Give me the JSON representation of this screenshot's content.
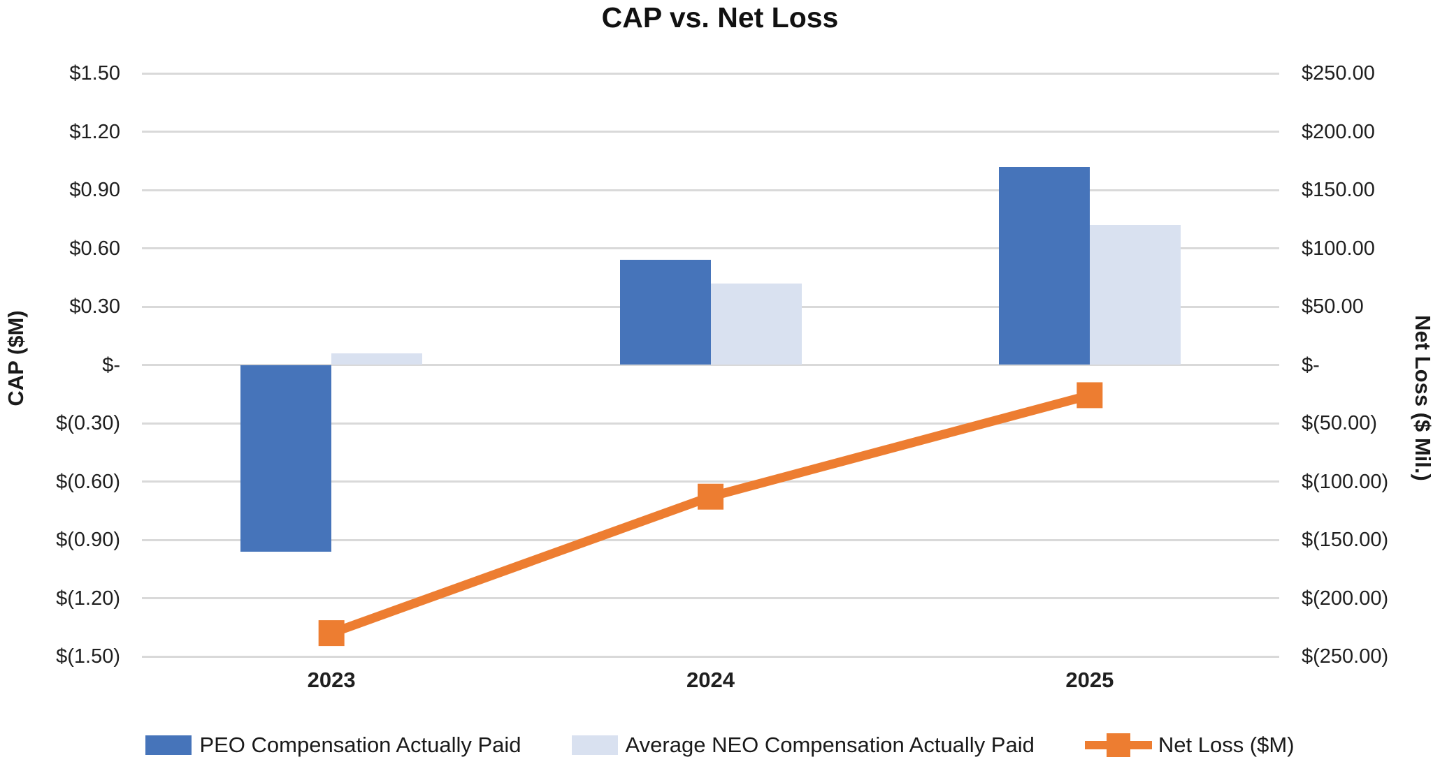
{
  "title": "CAP vs. Net Loss",
  "left_axis": {
    "title": "CAP ($M)",
    "ticks": [
      "$1.50",
      "$1.20",
      "$0.90",
      "$0.60",
      "$0.30",
      "$-",
      "$(0.30)",
      "$(0.60)",
      "$(0.90)",
      "$(1.20)",
      "$(1.50)"
    ]
  },
  "right_axis": {
    "title": "Net Loss ($ Mil.)",
    "ticks": [
      "$250.00",
      "$200.00",
      "$150.00",
      "$100.00",
      "$50.00",
      "$-",
      "$(50.00)",
      "$(100.00)",
      "$(150.00)",
      "$(200.00)",
      "$(250.00)"
    ]
  },
  "chart_data": {
    "type": "combo",
    "categories": [
      "2023",
      "2024",
      "2025"
    ],
    "series": [
      {
        "name": "PEO Compensation Actually Paid",
        "type": "bar",
        "axis": "left",
        "color": "#4674BA",
        "values": [
          -0.96,
          0.54,
          1.02
        ]
      },
      {
        "name": "Average NEO Compensation Actually Paid",
        "type": "bar",
        "axis": "left",
        "color": "#D9E1F0",
        "values": [
          0.06,
          0.42,
          0.72
        ]
      },
      {
        "name": "Net Loss ($M)",
        "type": "line",
        "axis": "right",
        "color": "#ED7D31",
        "values": [
          -230,
          -113,
          -26
        ]
      }
    ],
    "title": "CAP vs. Net Loss",
    "xlabel": "",
    "ylabel_left": "CAP ($M)",
    "ylabel_right": "Net Loss ($ Mil.)",
    "left_ylim": [
      -1.5,
      1.5
    ],
    "left_step": 0.3,
    "right_ylim": [
      -250,
      250
    ],
    "right_step": 50,
    "grid": true,
    "gridline_color": "#D9D9D9",
    "legend_position": "bottom"
  }
}
